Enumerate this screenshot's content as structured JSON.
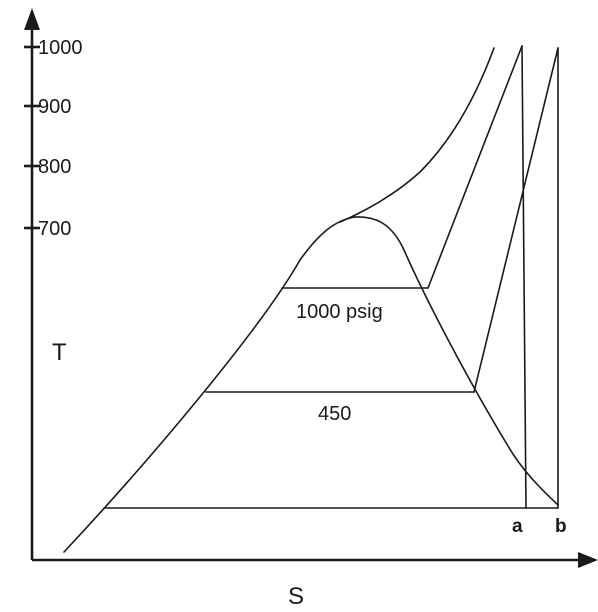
{
  "axes": {
    "y_label": "T",
    "x_label": "S",
    "y_ticks": [
      "1000",
      "900",
      "800",
      "700"
    ]
  },
  "isobars": {
    "high": "1000 psig",
    "low": "450"
  },
  "points": {
    "a": "a",
    "b": "b"
  }
}
